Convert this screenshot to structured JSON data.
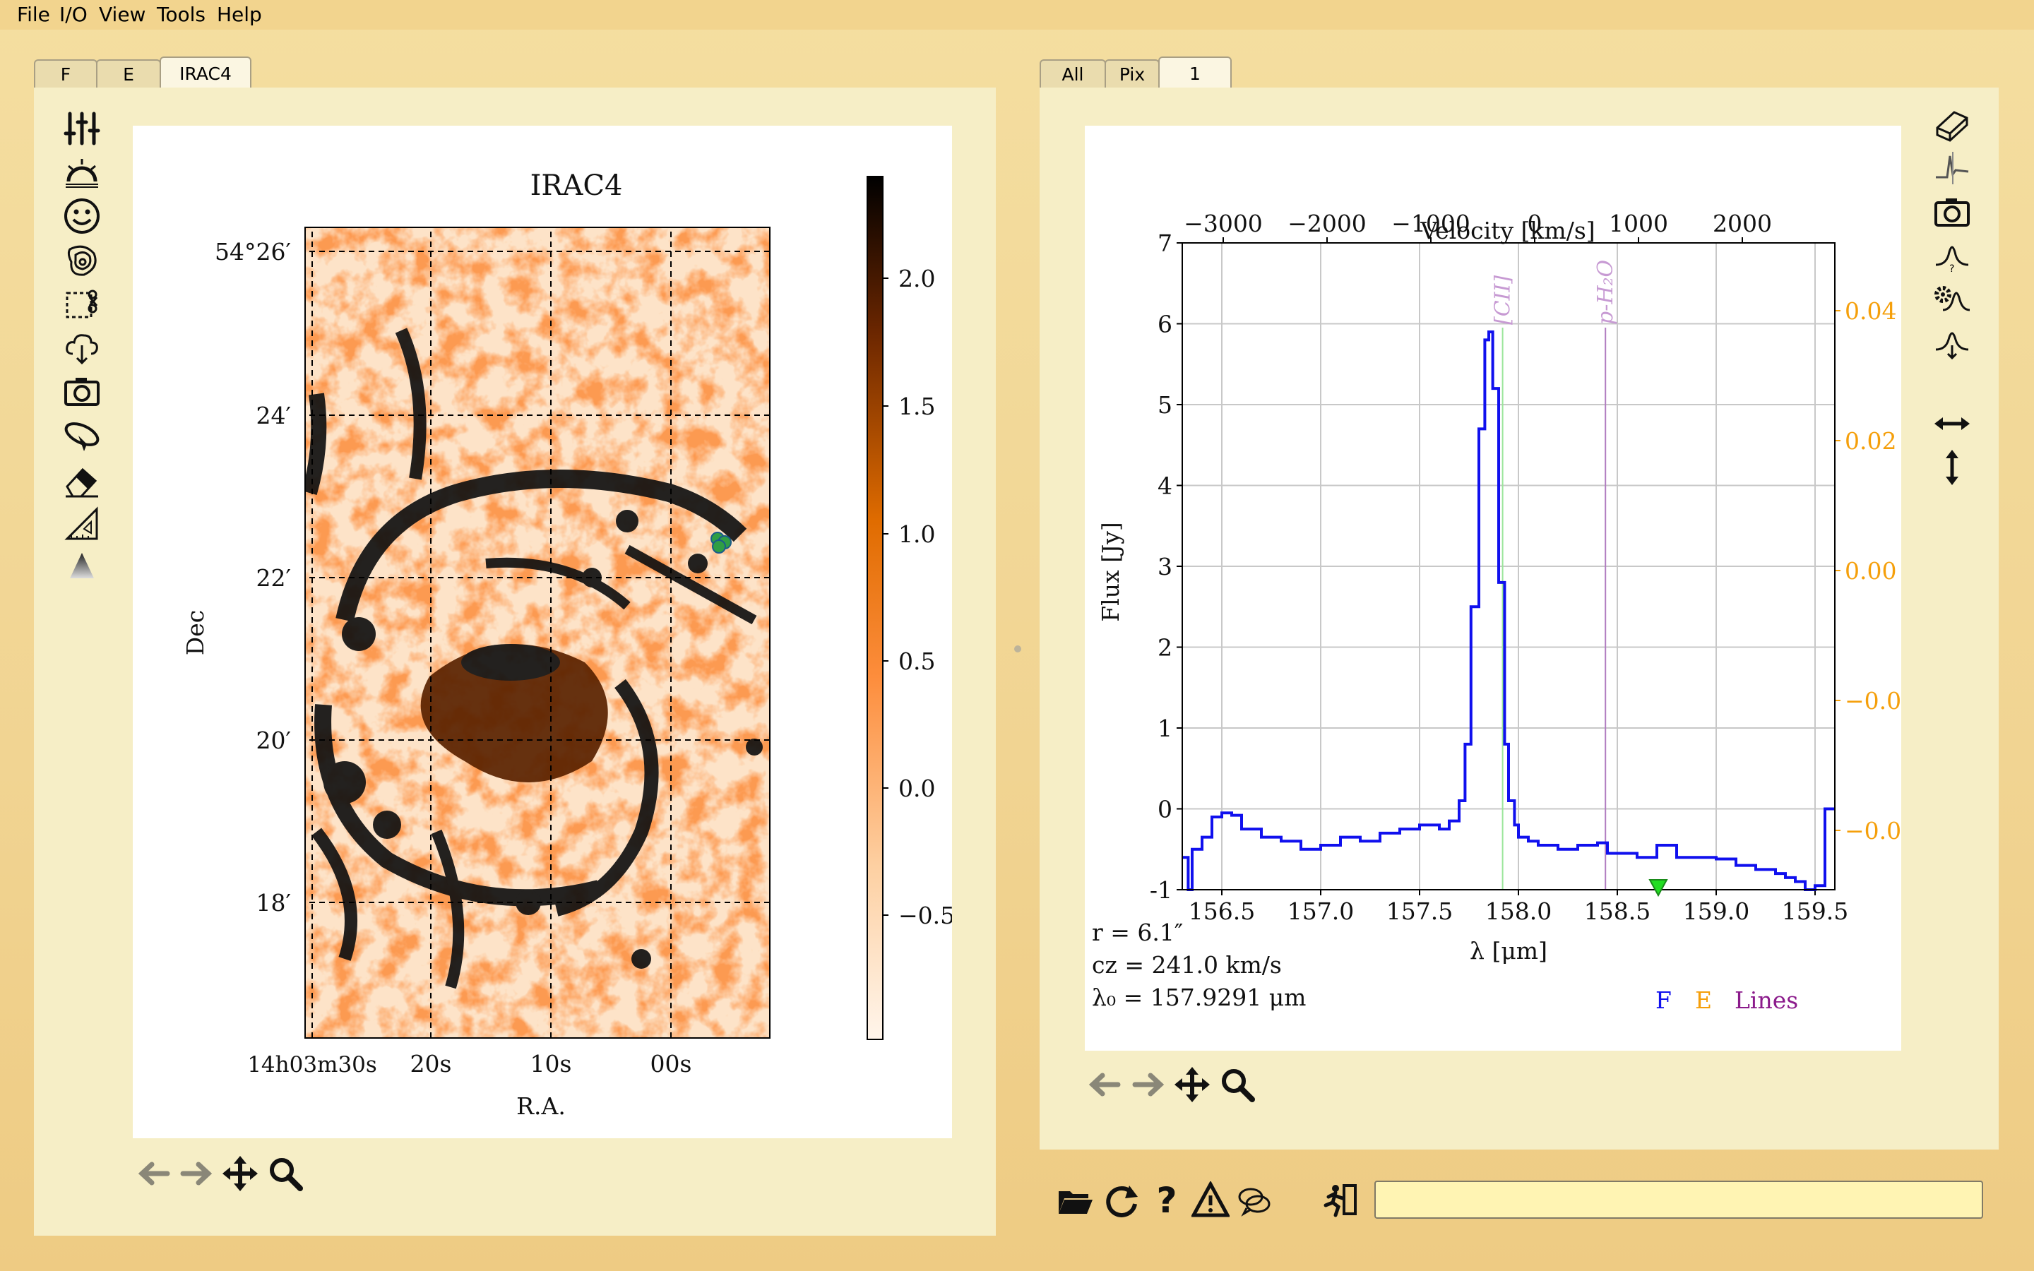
{
  "menu": [
    "File",
    "I/O",
    "View",
    "Tools",
    "Help"
  ],
  "left_tabs": [
    "F",
    "E",
    "IRAC4"
  ],
  "right_tabs": [
    "All",
    "Pix",
    "1"
  ],
  "image_panel": {
    "title": "IRAC4",
    "dec_ticks": [
      "54°26′",
      "24′",
      "22′",
      "20′",
      "18′"
    ],
    "ra_ticks": [
      "14h03m30s",
      "20s",
      "10s",
      "00s"
    ],
    "xlabel": "R.A.",
    "ylabel": "Dec",
    "colorbar_ticks": [
      "2.0",
      "1.5",
      "1.0",
      "0.5",
      "0.0",
      "−0.5"
    ],
    "colormap": "orange-black (white at low)",
    "marker_color": "#2f9e44"
  },
  "left_toolbar_icons": [
    "sliders-icon",
    "sunrise-icon",
    "smiley-icon",
    "contour-icon",
    "crop-icon",
    "cloud-download-icon",
    "camera-icon",
    "satellite-icon",
    "eraser-icon",
    "ruler-icon",
    "triangle-icon"
  ],
  "right_toolbar_icons": [
    "eraser-3d-icon",
    "spectrum-icon",
    "camera-icon",
    "gaussian-question-icon",
    "gaussian-gear-icon",
    "gaussian-download-icon",
    "horizontal-arrows-icon",
    "vertical-arrows-icon"
  ],
  "nav_icons": [
    "back-arrow-icon",
    "forward-arrow-icon",
    "pan-icon",
    "zoom-icon"
  ],
  "bottom_icons": [
    "folder-icon",
    "reload-icon",
    "help-icon",
    "warning-icon",
    "chat-icon",
    "exit-icon"
  ],
  "spectrum": {
    "top_axis_label": "Velocity [km/s]",
    "info_lines": [
      "r = 6.1″",
      "cz = 241.0 km/s",
      "λ₀ = 157.9291 μm"
    ],
    "legend": [
      "F",
      "E",
      "Lines"
    ],
    "line_labels": [
      "[CII]",
      "p-H₂O"
    ],
    "colors": {
      "F": "#1010ee",
      "E": "#f59f0a",
      "Lines": "#8b1a8b"
    }
  },
  "chart_data": {
    "type": "line",
    "xlabel": "λ [μm]",
    "ylabel": "Flux [Jy]",
    "x_top_label": "Velocity [km/s]",
    "xlim": [
      156.3,
      159.6
    ],
    "ylim": [
      -1,
      7
    ],
    "x_ticks": [
      156.5,
      157.0,
      157.5,
      158.0,
      158.5,
      159.0,
      159.5
    ],
    "y_ticks": [
      -1,
      0,
      1,
      2,
      3,
      4,
      5,
      6,
      7
    ],
    "top_ticks": [
      "−3000",
      "−2000",
      "−1000",
      "0",
      "1000",
      "2000"
    ],
    "right_ticks": [
      "0.04",
      "0.02",
      "0.00",
      "−0.0",
      "−0.0"
    ],
    "lines": [
      {
        "name": "[CII]",
        "x": 157.92
      },
      {
        "name": "p-H₂O",
        "x": 158.44
      }
    ],
    "series": [
      {
        "name": "F",
        "x": [
          156.3,
          156.33,
          156.35,
          156.4,
          156.45,
          156.5,
          156.55,
          156.6,
          156.7,
          156.8,
          156.9,
          157.0,
          157.1,
          157.2,
          157.3,
          157.4,
          157.5,
          157.6,
          157.65,
          157.7,
          157.73,
          157.76,
          157.8,
          157.83,
          157.85,
          157.87,
          157.9,
          157.93,
          157.95,
          157.98,
          158.0,
          158.05,
          158.1,
          158.2,
          158.3,
          158.4,
          158.45,
          158.5,
          158.6,
          158.7,
          158.8,
          158.9,
          159.0,
          159.1,
          159.2,
          159.3,
          159.35,
          159.4,
          159.45,
          159.5,
          159.55,
          159.6
        ],
        "values": [
          -0.6,
          -1.0,
          -0.5,
          -0.35,
          -0.1,
          -0.05,
          -0.08,
          -0.25,
          -0.35,
          -0.4,
          -0.5,
          -0.45,
          -0.35,
          -0.4,
          -0.3,
          -0.25,
          -0.2,
          -0.25,
          -0.15,
          0.1,
          0.8,
          2.5,
          4.7,
          5.8,
          5.9,
          5.2,
          2.8,
          0.8,
          0.1,
          -0.2,
          -0.35,
          -0.4,
          -0.45,
          -0.5,
          -0.45,
          -0.42,
          -0.55,
          -0.55,
          -0.6,
          -0.45,
          -0.6,
          -0.6,
          -0.62,
          -0.7,
          -0.75,
          -0.8,
          -0.85,
          -0.9,
          -1.0,
          -0.95,
          0.0,
          0.0
        ]
      }
    ]
  }
}
